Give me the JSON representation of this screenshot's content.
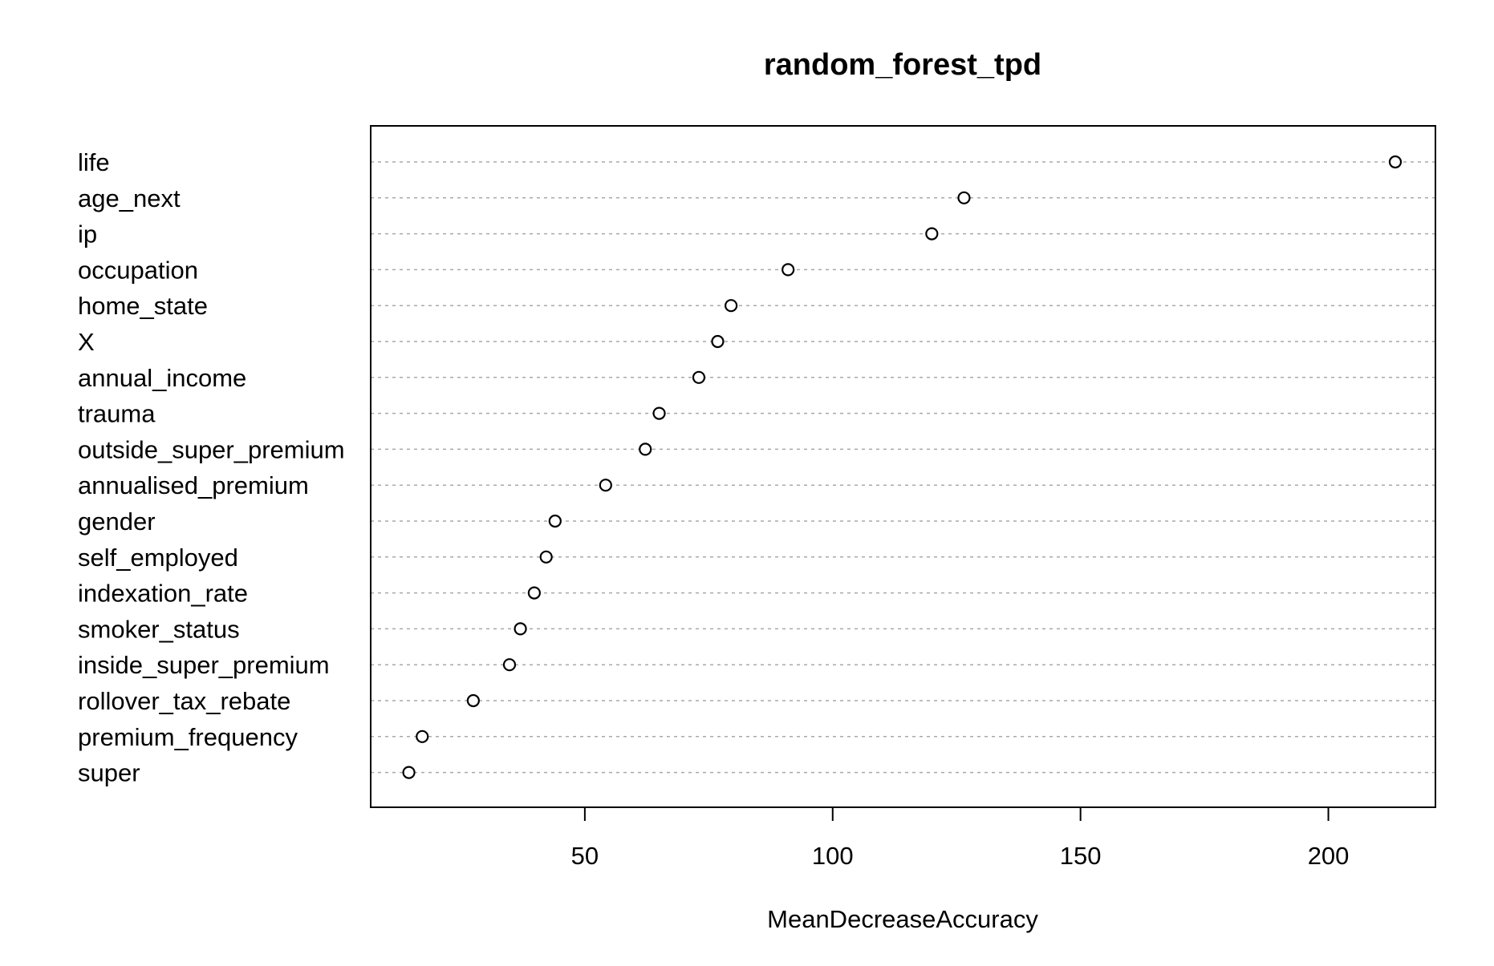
{
  "chart_data": {
    "type": "scatter",
    "title": "random_forest_tpd",
    "xlabel": "MeanDecreaseAccuracy",
    "ylabel": "",
    "xlim": [
      6.8,
      221.6
    ],
    "xticks": [
      50,
      100,
      150,
      200
    ],
    "grid": "dotted horizontal guide lines",
    "categories": [
      "life",
      "age_next",
      "ip",
      "occupation",
      "home_state",
      "X",
      "annual_income",
      "trauma",
      "outside_super_premium",
      "annualised_premium",
      "gender",
      "self_employed",
      "indexation_rate",
      "smoker_status",
      "inside_super_premium",
      "rollover_tax_rebate",
      "premium_frequency",
      "super"
    ],
    "values": [
      213.5,
      126.5,
      120.0,
      91.0,
      79.5,
      76.8,
      73.0,
      65.0,
      62.2,
      54.2,
      44.0,
      42.2,
      39.8,
      37.0,
      34.8,
      27.5,
      17.2,
      14.5
    ]
  }
}
